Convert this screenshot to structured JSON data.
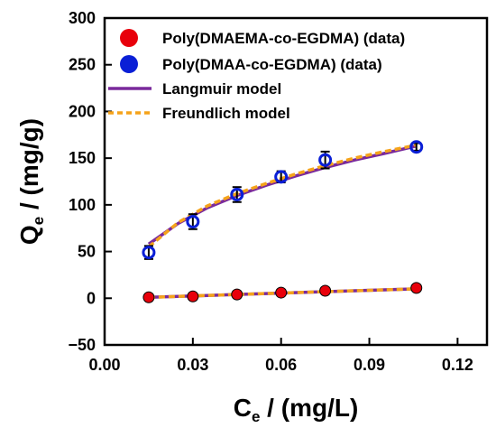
{
  "chart_data": {
    "type": "scatter",
    "xlabel": {
      "main": "C",
      "sub": "e",
      "rest": " / (mg/L)"
    },
    "ylabel": {
      "main": "Q",
      "sub": "e",
      "rest": " / (mg/g)"
    },
    "xlim": [
      0,
      0.13
    ],
    "ylim": [
      -50,
      300
    ],
    "x_ticks": [
      0.0,
      0.03,
      0.06,
      0.09,
      0.12
    ],
    "x_tick_labels": [
      "0.00",
      "0.03",
      "0.06",
      "0.09",
      "0.12"
    ],
    "y_ticks": [
      -50,
      0,
      50,
      100,
      150,
      200,
      250,
      300
    ],
    "y_tick_labels": [
      "−50",
      "0",
      "50",
      "100",
      "150",
      "200",
      "250",
      "300"
    ],
    "grid": false,
    "legend_position": "top-left",
    "series": [
      {
        "name": "Poly(DMAEMA-co-EGDMA)  (data)",
        "kind": "points",
        "color": "#e8000b",
        "x": [
          0.015,
          0.03,
          0.045,
          0.06,
          0.075,
          0.106
        ],
        "y": [
          1,
          2,
          4,
          6,
          8,
          11
        ],
        "err": [
          3,
          2,
          3,
          3,
          3,
          3
        ]
      },
      {
        "name": "Poly(DMAA-co-EGDMA)  (data)",
        "kind": "points",
        "color": "#0a1fd6",
        "x": [
          0.015,
          0.03,
          0.045,
          0.06,
          0.075,
          0.106
        ],
        "y": [
          49,
          82,
          111,
          130,
          148,
          162
        ],
        "err": [
          7,
          8,
          8,
          6,
          9,
          4
        ]
      },
      {
        "name": "Langmuir model",
        "kind": "line",
        "style": "solid",
        "color": "#7a2a9c",
        "curves": [
          {
            "x": [
              0.015,
              0.025,
              0.035,
              0.045,
              0.055,
              0.065,
              0.075,
              0.085,
              0.095,
              0.106
            ],
            "y": [
              58,
              80,
              97,
              110,
              121,
              131,
              140,
              148,
              155,
              163
            ]
          },
          {
            "x": [
              0.015,
              0.035,
              0.055,
              0.075,
              0.095,
              0.106
            ],
            "y": [
              1,
              3,
              5,
              7,
              9,
              10
            ]
          }
        ]
      },
      {
        "name": "Freundlich model",
        "kind": "line",
        "style": "dashed",
        "color": "#f5a31a",
        "curves": [
          {
            "x": [
              0.015,
              0.025,
              0.035,
              0.045,
              0.055,
              0.065,
              0.075,
              0.085,
              0.095,
              0.106
            ],
            "y": [
              55,
              81,
              99,
              112,
              123,
              133,
              142,
              150,
              157,
              164
            ]
          },
          {
            "x": [
              0.015,
              0.035,
              0.055,
              0.075,
              0.095,
              0.106
            ],
            "y": [
              1,
              3,
              5,
              7,
              9,
              10
            ]
          }
        ]
      }
    ]
  }
}
